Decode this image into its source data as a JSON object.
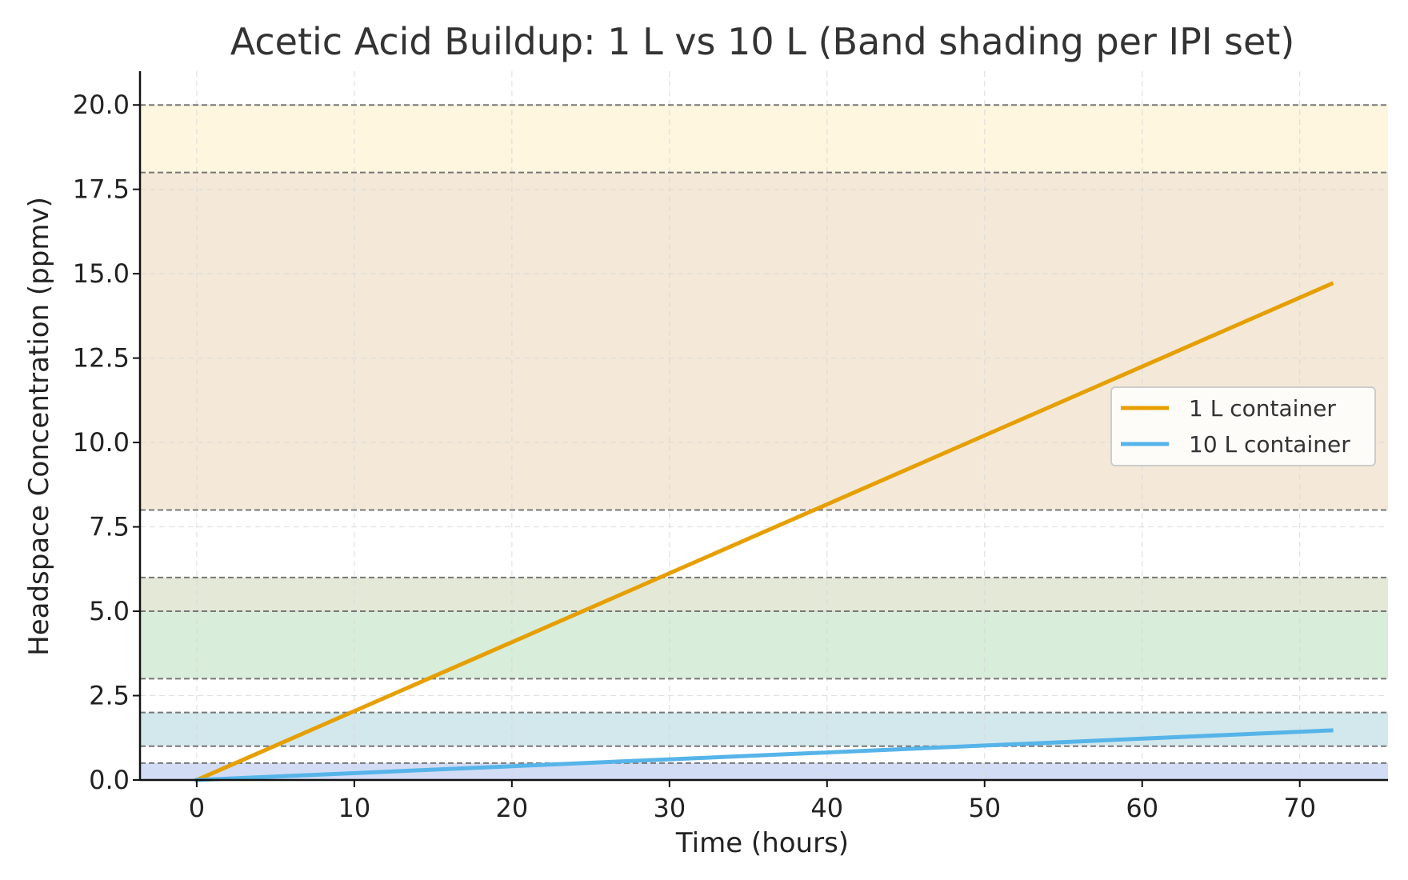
{
  "chart_data": {
    "type": "line",
    "title": "Acetic Acid Buildup: 1 L vs 10 L (Band shading per IPI set)",
    "xlabel": "Time (hours)",
    "ylabel": "Headspace Concentration (ppmv)",
    "xlim": [
      -3.6,
      75.6
    ],
    "ylim": [
      0,
      21
    ],
    "xticks": [
      0,
      10,
      20,
      30,
      40,
      50,
      60,
      70
    ],
    "yticks": [
      0.0,
      2.5,
      5.0,
      7.5,
      10.0,
      12.5,
      15.0,
      17.5,
      20.0
    ],
    "ytick_labels": [
      "0.0",
      "2.5",
      "5.0",
      "7.5",
      "10.0",
      "12.5",
      "15.0",
      "17.5",
      "20.0"
    ],
    "grid": true,
    "legend_position": "right",
    "series": [
      {
        "name": "1 L container",
        "color": "#E69F00",
        "x": [
          0,
          72
        ],
        "y": [
          0.0,
          14.7
        ]
      },
      {
        "name": "10 L container",
        "color": "#56B4E9",
        "x": [
          0,
          72
        ],
        "y": [
          0.0,
          1.47
        ]
      }
    ],
    "bands": [
      {
        "y0": 0.0,
        "y1": 0.5,
        "color": "#d2dcf5"
      },
      {
        "y0": 1.0,
        "y1": 2.0,
        "color": "#d2e8ec"
      },
      {
        "y0": 3.0,
        "y1": 5.0,
        "color": "#d8edda"
      },
      {
        "y0": 5.0,
        "y1": 6.0,
        "color": "#e4e8d6"
      },
      {
        "y0": 8.0,
        "y1": 18.0,
        "color": "#f4e9d8"
      },
      {
        "y0": 18.0,
        "y1": 20.0,
        "color": "#fff6e0"
      }
    ]
  }
}
